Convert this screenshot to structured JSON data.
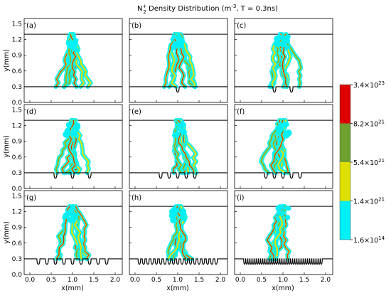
{
  "chart_data": {
    "type": "heatmap",
    "title_parts": {
      "prefix": "N",
      "sub": "2",
      "sup": "+",
      "rest": " Density Distribution (m",
      "unit_sup": "-3",
      "tail": ", T = 0.3ns)"
    },
    "xlabel": "x(mm)",
    "ylabel": "y(mm)",
    "xlim": [
      0.0,
      2.0
    ],
    "ylim": [
      0.0,
      1.6
    ],
    "x_ticks": [
      "0.0",
      "0.5",
      "1.0",
      "1.5",
      "2.0"
    ],
    "y_ticks": [
      "0.0",
      "0.3",
      "0.6",
      "0.9",
      "1.2",
      "1.5"
    ],
    "upper_electrode_y": 1.3,
    "lower_surface_y": 0.3,
    "panels": [
      {
        "label": "(a)",
        "grooves": []
      },
      {
        "label": "(b)",
        "grooves": [
          1.0
        ]
      },
      {
        "label": "(c)",
        "grooves": [
          0.8,
          1.2
        ]
      },
      {
        "label": "(d)",
        "grooves": [
          0.6,
          1.0,
          1.4
        ]
      },
      {
        "label": "(e)",
        "grooves": [
          0.6,
          0.8,
          1.0,
          1.2,
          1.4
        ]
      },
      {
        "label": "(f)",
        "grooves": [
          0.6,
          0.8,
          1.0,
          1.2,
          1.4
        ]
      },
      {
        "label": "(g)",
        "grooves": [
          0.2,
          0.4,
          0.6,
          0.8,
          1.0,
          1.2,
          1.4,
          1.6,
          1.8
        ]
      },
      {
        "label": "(h)",
        "grooves": [
          0.1,
          0.2,
          0.3,
          0.4,
          0.5,
          0.6,
          0.7,
          0.8,
          0.9,
          1.0,
          1.1,
          1.2,
          1.3,
          1.4,
          1.5,
          1.6,
          1.7,
          1.8,
          1.9
        ]
      },
      {
        "label": "(i)",
        "grooves": [
          0.1,
          0.15,
          0.2,
          0.25,
          0.3,
          0.35,
          0.4,
          0.45,
          0.5,
          0.55,
          0.6,
          0.65,
          0.7,
          0.75,
          0.8,
          0.85,
          0.9,
          0.95,
          1.0,
          1.05,
          1.1,
          1.15,
          1.2,
          1.25,
          1.3,
          1.35,
          1.4,
          1.45,
          1.5,
          1.55,
          1.6,
          1.65,
          1.7,
          1.75,
          1.8,
          1.85,
          1.9
        ]
      }
    ],
    "colorbar": {
      "colors": [
        "#dd0000",
        "#70a030",
        "#e0e000",
        "#00f0f8"
      ],
      "ticks": [
        {
          "mant": "3.4×10",
          "exp": "23"
        },
        {
          "mant": "8.2×10",
          "exp": "21"
        },
        {
          "mant": "5.4×10",
          "exp": "21"
        },
        {
          "mant": "1.4×10",
          "exp": "21"
        },
        {
          "mant": "1.6×10",
          "exp": "14"
        }
      ]
    }
  }
}
